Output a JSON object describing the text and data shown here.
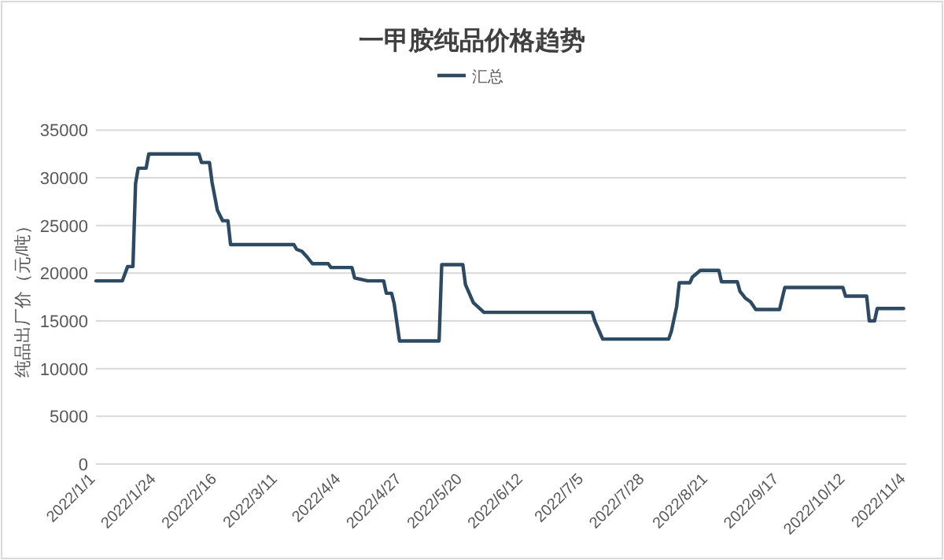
{
  "chart_data": {
    "type": "line",
    "title": "一甲胺纯品价格趋势",
    "ylabel": "纯品出厂价（元/吨）",
    "legend": "top",
    "grid": "y",
    "marker": "none",
    "line_style": "solid",
    "xlim": [
      "2022-01-01",
      "2022-11-04"
    ],
    "xticks": [
      {
        "value": "2022-01-01",
        "label": "2022/1/1"
      },
      {
        "value": "2022-01-24",
        "label": "2022/1/24"
      },
      {
        "value": "2022-02-16",
        "label": "2022/2/16"
      },
      {
        "value": "2022-03-11",
        "label": "2022/3/11"
      },
      {
        "value": "2022-04-04",
        "label": "2022/4/4"
      },
      {
        "value": "2022-04-27",
        "label": "2022/4/27"
      },
      {
        "value": "2022-05-20",
        "label": "2022/5/20"
      },
      {
        "value": "2022-06-12",
        "label": "2022/6/12"
      },
      {
        "value": "2022-07-05",
        "label": "2022/7/5"
      },
      {
        "value": "2022-07-28",
        "label": "2022/7/28"
      },
      {
        "value": "2022-08-21",
        "label": "2022/8/21"
      },
      {
        "value": "2022-09-17",
        "label": "2022/9/17"
      },
      {
        "value": "2022-10-12",
        "label": "2022/10/12"
      },
      {
        "value": "2022-11-04",
        "label": "2022/11/4"
      }
    ],
    "ylim": [
      0,
      35000
    ],
    "yticks": [
      0,
      5000,
      10000,
      15000,
      20000,
      25000,
      30000,
      35000
    ],
    "x": [
      "2022-01-01",
      "2022-01-11",
      "2022-01-13",
      "2022-01-15",
      "2022-01-16",
      "2022-01-17",
      "2022-01-20",
      "2022-01-21",
      "2022-02-09",
      "2022-02-10",
      "2022-02-13",
      "2022-02-14",
      "2022-02-16",
      "2022-02-18",
      "2022-02-20",
      "2022-02-21",
      "2022-03-17",
      "2022-03-18",
      "2022-03-20",
      "2022-03-22",
      "2022-03-24",
      "2022-03-30",
      "2022-03-31",
      "2022-04-08",
      "2022-04-09",
      "2022-04-14",
      "2022-04-20",
      "2022-04-21",
      "2022-04-23",
      "2022-04-24",
      "2022-04-26",
      "2022-05-11",
      "2022-05-12",
      "2022-05-20",
      "2022-05-21",
      "2022-05-24",
      "2022-05-28",
      "2022-07-08",
      "2022-07-09",
      "2022-07-12",
      "2022-08-06",
      "2022-08-07",
      "2022-08-09",
      "2022-08-10",
      "2022-08-14",
      "2022-08-15",
      "2022-08-18",
      "2022-08-25",
      "2022-08-26",
      "2022-09-01",
      "2022-09-02",
      "2022-09-04",
      "2022-09-06",
      "2022-09-08",
      "2022-09-17",
      "2022-09-19",
      "2022-10-11",
      "2022-10-12",
      "2022-10-20",
      "2022-10-21",
      "2022-10-23",
      "2022-10-24",
      "2022-11-03"
    ],
    "series": [
      {
        "name": "汇总",
        "color": "#2e4a62",
        "values": [
          19200,
          19200,
          20700,
          20700,
          29400,
          31000,
          31000,
          32500,
          32500,
          31600,
          31600,
          29500,
          26600,
          25500,
          25500,
          23000,
          23000,
          22500,
          22300,
          21700,
          21000,
          21000,
          20600,
          20600,
          19500,
          19200,
          19200,
          17900,
          17900,
          16800,
          12900,
          12900,
          20900,
          20900,
          18800,
          16900,
          15900,
          15900,
          15000,
          13100,
          13100,
          13900,
          16500,
          19000,
          19000,
          19600,
          20300,
          20300,
          19100,
          19100,
          18100,
          17400,
          17000,
          16200,
          16200,
          18500,
          18500,
          17600,
          17600,
          15000,
          15000,
          16300,
          16300
        ]
      }
    ]
  }
}
